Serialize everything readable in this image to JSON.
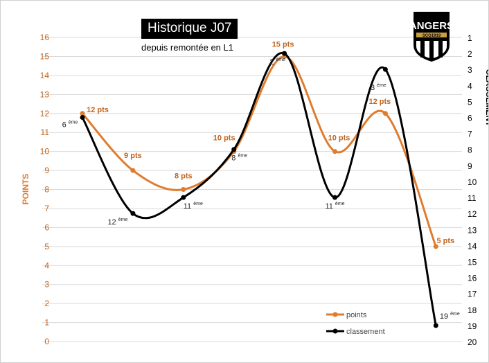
{
  "chart_data": {
    "type": "line",
    "title": "Historique J07",
    "subtitle": "depuis remontée en L1",
    "ylabel": "POINTS",
    "y2label": "CLASSEMENT",
    "ylim": [
      0,
      16
    ],
    "y2lim": [
      1,
      20
    ],
    "y2_reversed": true,
    "yticks": [
      0,
      1,
      2,
      3,
      4,
      5,
      6,
      7,
      8,
      9,
      10,
      11,
      12,
      13,
      14,
      15,
      16
    ],
    "y2ticks": [
      1,
      2,
      3,
      4,
      5,
      6,
      7,
      8,
      9,
      10,
      11,
      12,
      13,
      14,
      15,
      16,
      17,
      18,
      19,
      20
    ],
    "grid": true,
    "smooth": true,
    "legend_position": "bottom-right",
    "series": [
      {
        "name": "points",
        "axis": "left",
        "color": "#E07C2E",
        "label_color": "#C0651E",
        "values": [
          12,
          9,
          8,
          10,
          15,
          10,
          12,
          5
        ],
        "labels": [
          "12 pts",
          "9 pts",
          "8 pts",
          "10 pts",
          "15 pts",
          "10 pts",
          "12 pts",
          "5 pts"
        ]
      },
      {
        "name": "classement",
        "axis": "right",
        "color": "#000000",
        "values": [
          6,
          12,
          11,
          8,
          2,
          11,
          3,
          19
        ],
        "labels": [
          "6",
          "12",
          "11",
          "8",
          "2",
          "11",
          "3",
          "19"
        ],
        "label_suffix": "ème"
      }
    ]
  },
  "logo": {
    "text_top": "ANGERS",
    "text_band": "SCO1919",
    "text_bottom": "SCO"
  }
}
